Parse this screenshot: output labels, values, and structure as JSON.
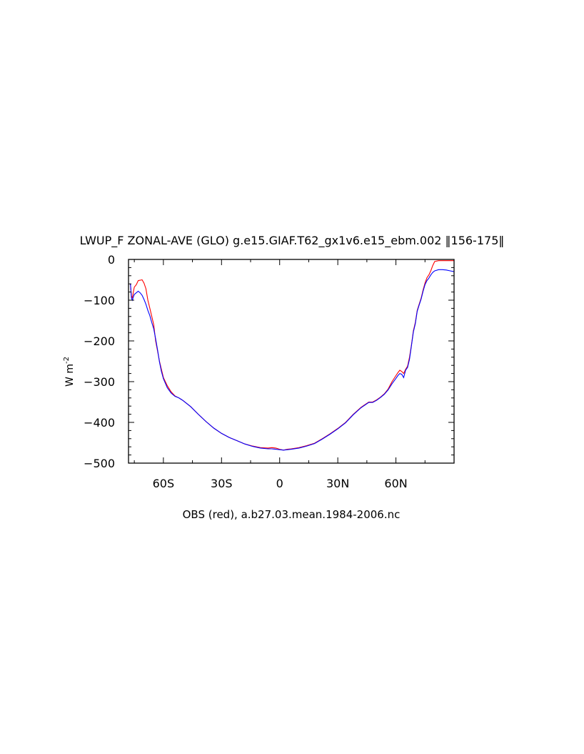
{
  "chart_data": {
    "type": "line",
    "title": "LWUP_F ZONAL-AVE (GLO) g.e15.GIAF.T62_gx1v6.e15_ebm.002 ‖156-175‖",
    "xlabel": "OBS (red), a.b27.03.mean.1984-2006.nc",
    "ylabel": "W m",
    "ylabel_superscript": "-2",
    "xlim": [
      -78,
      90
    ],
    "ylim": [
      -500,
      0
    ],
    "x_ticks": [
      {
        "value": -60,
        "label": "60S"
      },
      {
        "value": -30,
        "label": "30S"
      },
      {
        "value": 0,
        "label": "0"
      },
      {
        "value": 30,
        "label": "30N"
      },
      {
        "value": 60,
        "label": "60N"
      }
    ],
    "y_ticks": [
      {
        "value": 0,
        "label": "0"
      },
      {
        "value": -100,
        "label": "−100"
      },
      {
        "value": -200,
        "label": "−200"
      },
      {
        "value": -300,
        "label": "−300"
      },
      {
        "value": -400,
        "label": "−400"
      },
      {
        "value": -500,
        "label": "−500"
      }
    ],
    "grid": false,
    "series": [
      {
        "color": "#ff0000",
        "x": [
          -77,
          -76.5,
          -76,
          -75.5,
          -75,
          -74,
          -73,
          -72,
          -71,
          -70,
          -69,
          -68,
          -67,
          -66,
          -65,
          -64,
          -63,
          -62,
          -61,
          -60,
          -58,
          -56,
          -54,
          -52,
          -50,
          -46,
          -42,
          -38,
          -34,
          -30,
          -26,
          -22,
          -18,
          -14,
          -10,
          -6,
          -4,
          -2,
          0,
          2,
          4,
          6,
          10,
          14,
          18,
          22,
          26,
          30,
          34,
          38,
          42,
          46,
          48,
          50,
          52,
          54,
          56,
          58,
          60,
          61,
          62,
          63,
          64,
          65,
          66,
          67,
          68,
          69,
          70,
          71,
          72,
          73,
          74,
          75,
          76,
          77,
          78,
          79,
          80,
          82,
          84,
          86,
          88,
          90
        ],
        "y": [
          -60,
          -90,
          -94,
          -80,
          -68,
          -62,
          -52,
          -51,
          -50,
          -58,
          -72,
          -100,
          -120,
          -140,
          -160,
          -200,
          -225,
          -250,
          -270,
          -290,
          -310,
          -325,
          -335,
          -340,
          -346,
          -361,
          -380,
          -398,
          -414,
          -427,
          -437,
          -445,
          -453,
          -458,
          -462,
          -463,
          -462,
          -463,
          -466,
          -468,
          -466,
          -465,
          -462,
          -457,
          -451,
          -440,
          -428,
          -415,
          -400,
          -380,
          -363,
          -350,
          -350,
          -345,
          -338,
          -330,
          -318,
          -300,
          -285,
          -278,
          -272,
          -275,
          -280,
          -270,
          -262,
          -240,
          -210,
          -175,
          -155,
          -125,
          -110,
          -95,
          -75,
          -58,
          -45,
          -38,
          -28,
          -15,
          -5,
          -3,
          -3,
          -3,
          -3,
          -3
        ]
      },
      {
        "color": "#0000ff",
        "x": [
          -77,
          -76.5,
          -76,
          -75.5,
          -75,
          -74,
          -73,
          -72,
          -71,
          -70,
          -69,
          -68,
          -67,
          -66,
          -65,
          -64,
          -63,
          -62,
          -61,
          -60,
          -58,
          -56,
          -54,
          -52,
          -50,
          -46,
          -42,
          -38,
          -34,
          -30,
          -26,
          -22,
          -18,
          -14,
          -10,
          -6,
          -4,
          -2,
          0,
          2,
          4,
          6,
          10,
          14,
          18,
          22,
          26,
          30,
          34,
          38,
          42,
          46,
          48,
          50,
          52,
          54,
          56,
          58,
          60,
          61,
          62,
          63,
          64,
          65,
          66,
          67,
          68,
          69,
          70,
          71,
          72,
          73,
          74,
          75,
          76,
          77,
          78,
          79,
          80,
          82,
          84,
          86,
          88,
          90
        ],
        "y": [
          -60,
          -95,
          -100,
          -92,
          -86,
          -82,
          -78,
          -82,
          -88,
          -98,
          -110,
          -125,
          -138,
          -155,
          -170,
          -195,
          -222,
          -252,
          -275,
          -293,
          -315,
          -328,
          -336,
          -340,
          -346,
          -361,
          -380,
          -398,
          -414,
          -427,
          -437,
          -445,
          -453,
          -459,
          -463,
          -465,
          -465,
          -466,
          -467,
          -468,
          -467,
          -466,
          -463,
          -458,
          -452,
          -441,
          -429,
          -416,
          -401,
          -381,
          -364,
          -351,
          -351,
          -346,
          -339,
          -331,
          -320,
          -305,
          -292,
          -285,
          -280,
          -282,
          -290,
          -272,
          -265,
          -245,
          -212,
          -178,
          -158,
          -127,
          -112,
          -97,
          -78,
          -62,
          -52,
          -46,
          -38,
          -32,
          -28,
          -25,
          -25,
          -26,
          -28,
          -30
        ]
      }
    ]
  }
}
